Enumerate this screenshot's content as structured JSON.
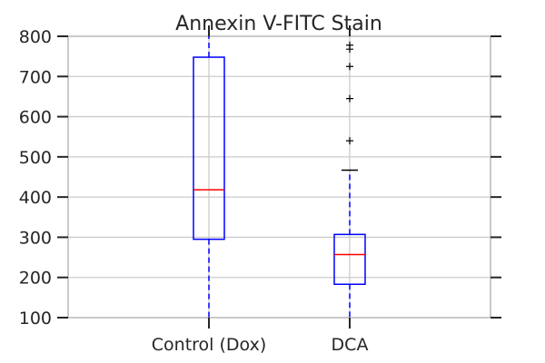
{
  "chart_data": {
    "type": "box",
    "title": "Annexin V-FITC Stain",
    "xlabel": "",
    "ylabel": "",
    "ylim": [
      100,
      800
    ],
    "yticks": [
      100,
      200,
      300,
      400,
      500,
      600,
      700,
      800
    ],
    "grid": true,
    "categories": [
      "Control (Dox)",
      "DCA"
    ],
    "boxes": [
      {
        "category": "Control (Dox)",
        "whisker_low": 100,
        "q1": 295,
        "median": 418,
        "q3": 748,
        "whisker_high": 800,
        "outliers": []
      },
      {
        "category": "DCA",
        "whisker_low": 100,
        "q1": 183,
        "median": 257,
        "q3": 307,
        "whisker_high": 467,
        "outliers": [
          540,
          645,
          725,
          768,
          778
        ]
      }
    ],
    "colors": {
      "box": "#0000ff",
      "median": "#ff0000",
      "whisker": "#0000ff",
      "flier": "#000000",
      "grid": "#cbcbcb",
      "frame": "#c9c9c9"
    }
  }
}
